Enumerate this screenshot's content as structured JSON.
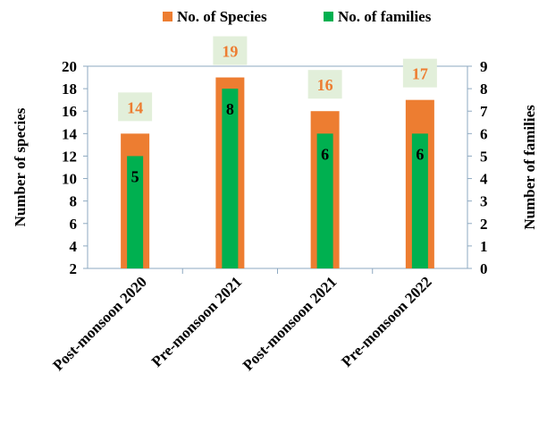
{
  "chart_data": {
    "type": "bar",
    "categories": [
      "Post-monsoon 2020",
      "Pre-monsoon 2021",
      "Post-monsoon 2021",
      "Pre-monsoon 2022"
    ],
    "series": [
      {
        "name": "No. of Species",
        "axis": "left",
        "color": "#ED7D31",
        "values": [
          14,
          19,
          16,
          17
        ],
        "label_color": "#ED7D31"
      },
      {
        "name": "No. of families",
        "axis": "right",
        "color": "#00B050",
        "values": [
          5,
          8,
          6,
          6
        ],
        "label_color": "#000000"
      }
    ],
    "ylabel": "Number of species",
    "y2label": "Number of families",
    "ylim": [
      2,
      20
    ],
    "y2lim": [
      0,
      9
    ],
    "yticks": [
      2,
      4,
      6,
      8,
      10,
      12,
      14,
      16,
      18,
      20
    ],
    "y2ticks": [
      0,
      1,
      2,
      3,
      4,
      5,
      6,
      7,
      8,
      9
    ],
    "legend_position": "top",
    "species_label_bg": "#E2EFDA",
    "grid": false
  }
}
